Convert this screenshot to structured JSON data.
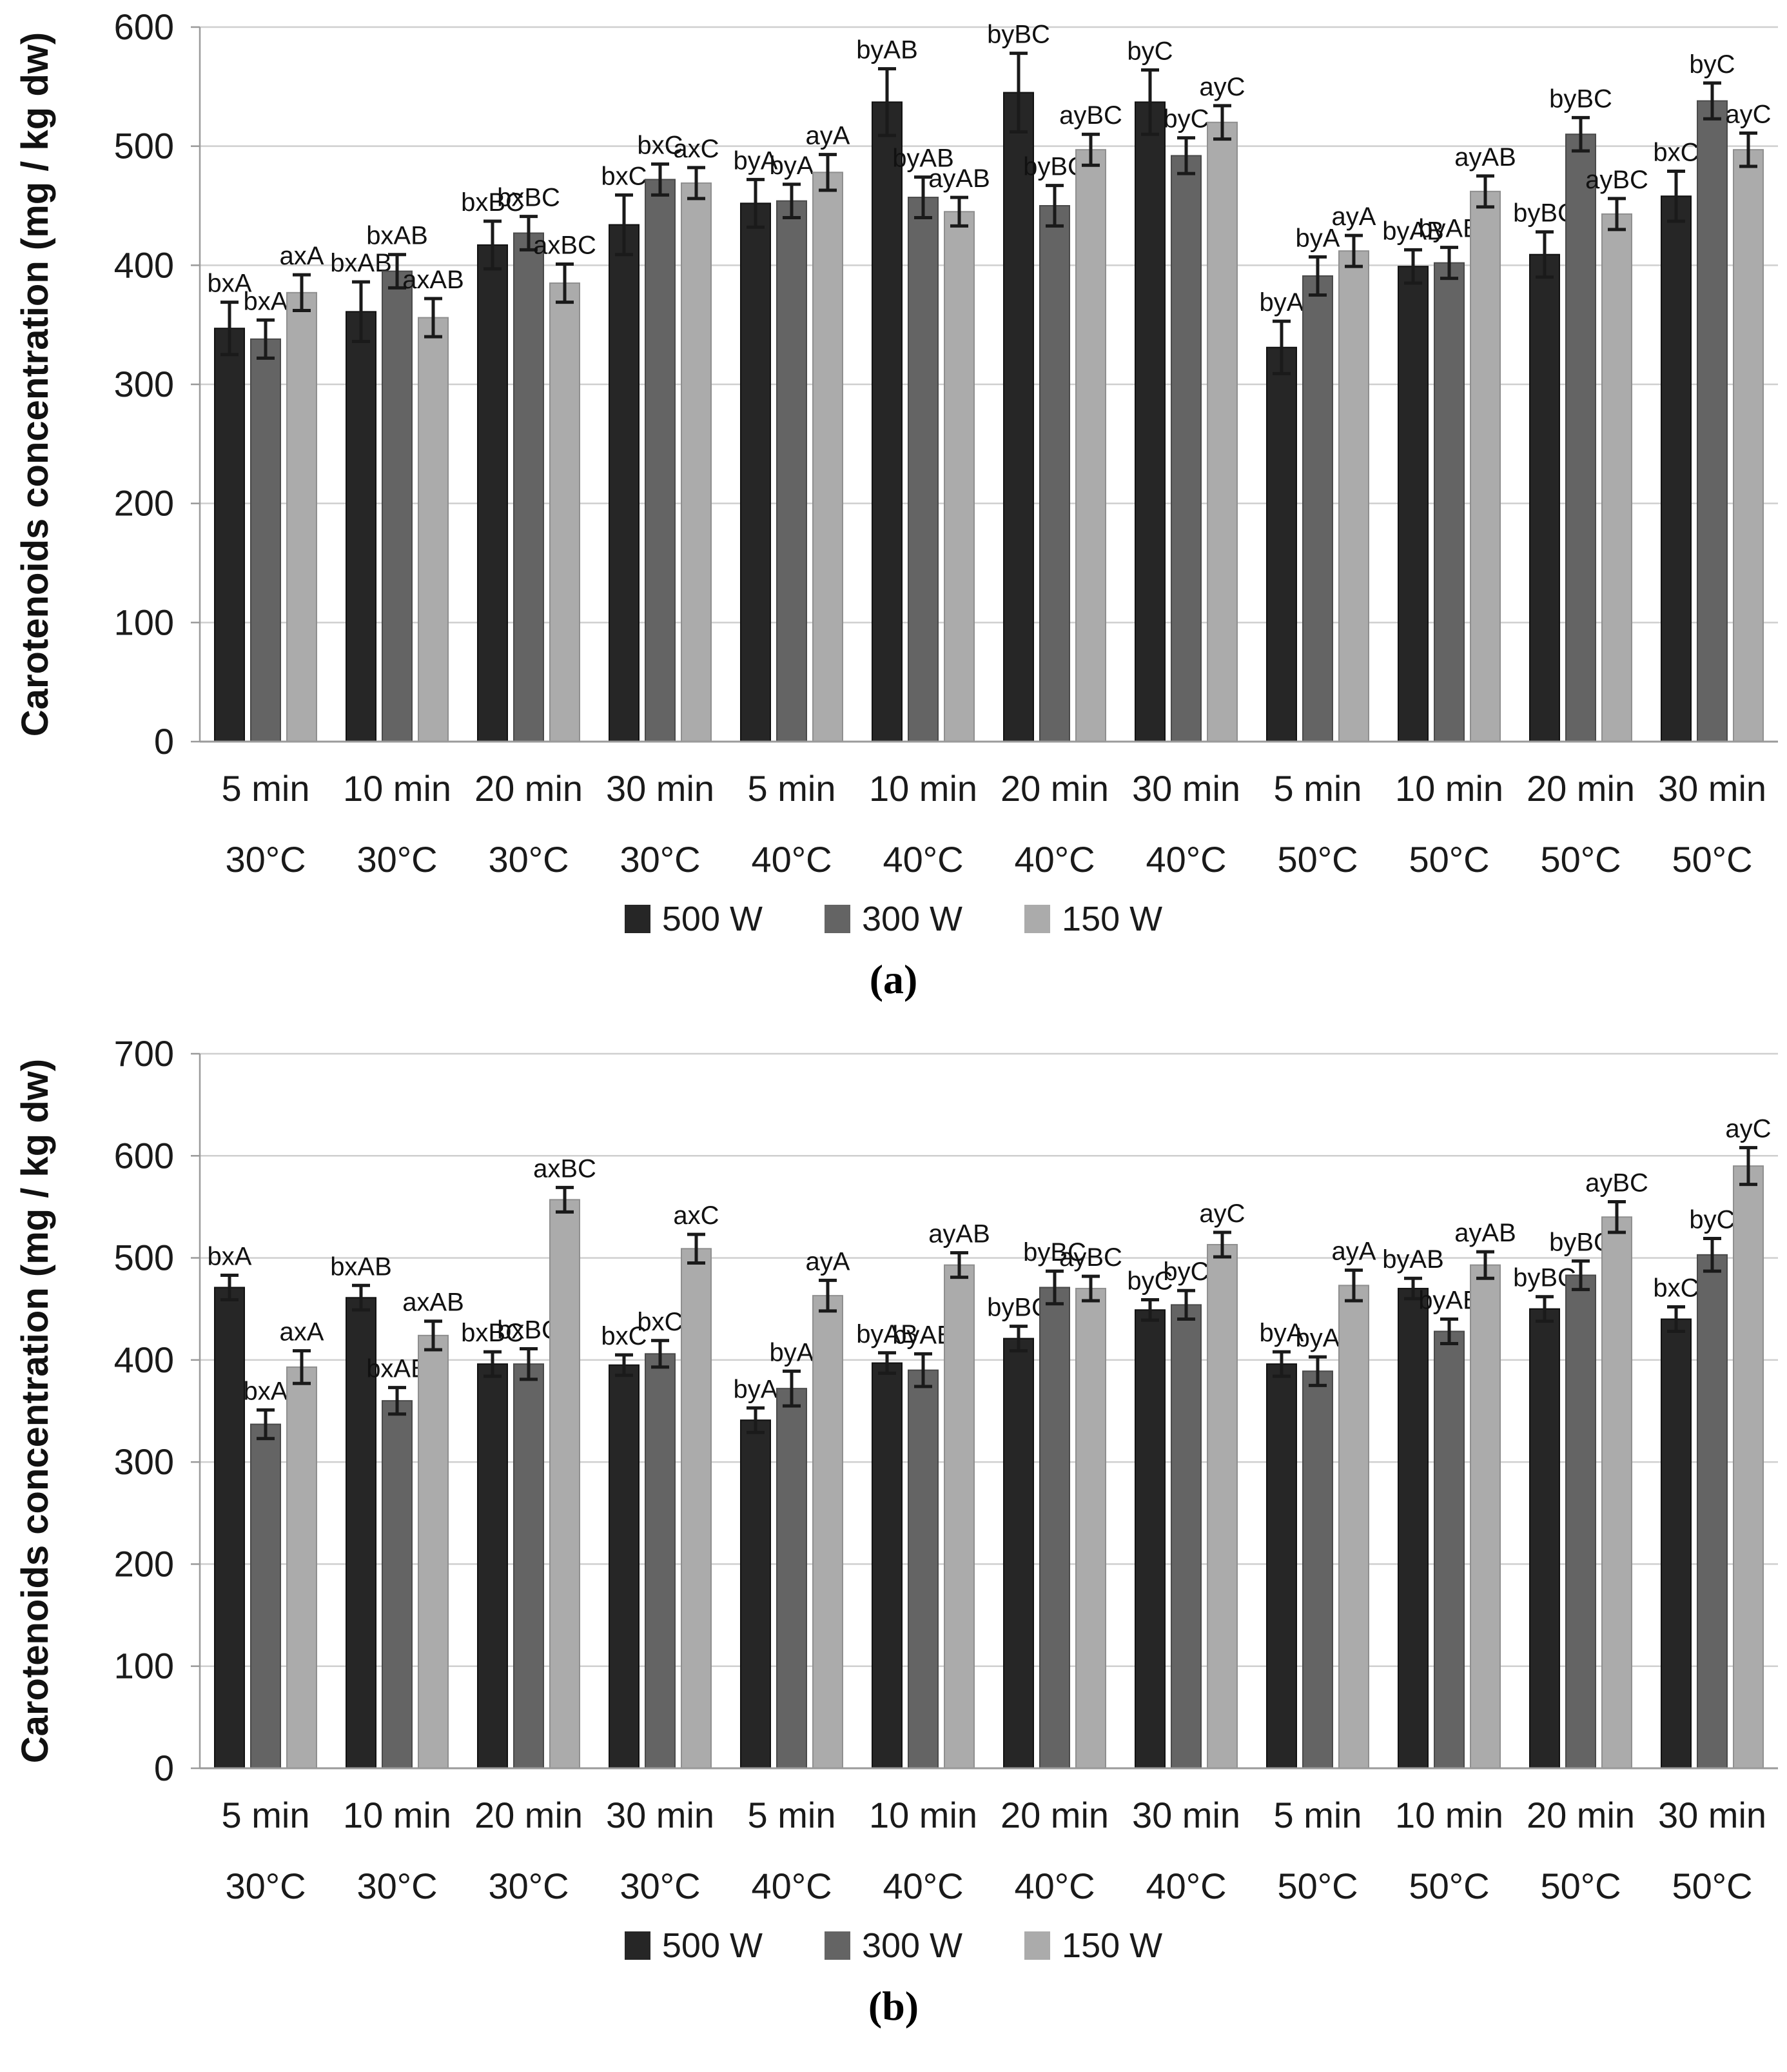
{
  "figure": {
    "description": "Two stacked grouped bar charts of carotenoids concentration with error bars and significance letters"
  },
  "chart_data": [
    {
      "type": "bar",
      "caption": "(a)",
      "ylabel": "Carotenoids concentration  (mg / kg dw)",
      "ylim": [
        0,
        600
      ],
      "ytick_step": 100,
      "grid": true,
      "legend_position": "bottom",
      "categories": [
        {
          "time": "5 min",
          "temp": "30°C"
        },
        {
          "time": "10 min",
          "temp": "30°C"
        },
        {
          "time": "20 min",
          "temp": "30°C"
        },
        {
          "time": "30 min",
          "temp": "30°C"
        },
        {
          "time": "5 min",
          "temp": "40°C"
        },
        {
          "time": "10 min",
          "temp": "40°C"
        },
        {
          "time": "20 min",
          "temp": "40°C"
        },
        {
          "time": "30 min",
          "temp": "40°C"
        },
        {
          "time": "5 min",
          "temp": "50°C"
        },
        {
          "time": "10 min",
          "temp": "50°C"
        },
        {
          "time": "20 min",
          "temp": "50°C"
        },
        {
          "time": "30 min",
          "temp": "50°C"
        }
      ],
      "series": [
        {
          "name": "500 W",
          "color": "#262626",
          "border": "#111111",
          "values": [
            347,
            361,
            417,
            434,
            452,
            537,
            545,
            537,
            331,
            399,
            409,
            458
          ],
          "errors": [
            22,
            25,
            20,
            25,
            20,
            28,
            33,
            27,
            22,
            14,
            19,
            21
          ],
          "labels": [
            "bxA",
            "bxAB",
            "bxBC",
            "bxC",
            "byA",
            "byAB",
            "byBC",
            "byC",
            "byA",
            "byAB",
            "byBC",
            "bxC"
          ]
        },
        {
          "name": "300 W",
          "color": "#646464",
          "border": "#4a4a4a",
          "values": [
            338,
            395,
            427,
            472,
            454,
            457,
            450,
            492,
            391,
            402,
            510,
            538
          ],
          "errors": [
            16,
            14,
            14,
            13,
            14,
            17,
            17,
            15,
            16,
            13,
            14,
            15
          ],
          "labels": [
            "bxA",
            "bxAB",
            "bxBC",
            "bxC",
            "byA",
            "byAB",
            "byBC",
            "byC",
            "byA",
            "byAB",
            "byBC",
            "byC"
          ]
        },
        {
          "name": "150 W",
          "color": "#ababab",
          "border": "#8f8f8f",
          "values": [
            377,
            356,
            385,
            469,
            478,
            445,
            497,
            520,
            412,
            462,
            443,
            497
          ],
          "errors": [
            15,
            16,
            16,
            13,
            15,
            12,
            13,
            14,
            13,
            13,
            13,
            14
          ],
          "labels": [
            "axA",
            "axAB",
            "axBC",
            "axC",
            "ayA",
            "ayAB",
            "ayBC",
            "ayC",
            "ayA",
            "ayAB",
            "ayBC",
            "ayC"
          ]
        }
      ]
    },
    {
      "type": "bar",
      "caption": "(b)",
      "ylabel": "Carotenoids concentration  (mg / kg dw)",
      "ylim": [
        0,
        700
      ],
      "ytick_step": 100,
      "grid": true,
      "legend_position": "bottom",
      "categories": [
        {
          "time": "5 min",
          "temp": "30°C"
        },
        {
          "time": "10 min",
          "temp": "30°C"
        },
        {
          "time": "20 min",
          "temp": "30°C"
        },
        {
          "time": "30 min",
          "temp": "30°C"
        },
        {
          "time": "5 min",
          "temp": "40°C"
        },
        {
          "time": "10 min",
          "temp": "40°C"
        },
        {
          "time": "20 min",
          "temp": "40°C"
        },
        {
          "time": "30 min",
          "temp": "40°C"
        },
        {
          "time": "5 min",
          "temp": "50°C"
        },
        {
          "time": "10 min",
          "temp": "50°C"
        },
        {
          "time": "20 min",
          "temp": "50°C"
        },
        {
          "time": "30 min",
          "temp": "50°C"
        }
      ],
      "series": [
        {
          "name": "500 W",
          "color": "#262626",
          "border": "#111111",
          "values": [
            471,
            461,
            396,
            395,
            341,
            397,
            421,
            449,
            396,
            470,
            450,
            440
          ],
          "errors": [
            12,
            12,
            12,
            10,
            12,
            10,
            12,
            10,
            12,
            10,
            12,
            12
          ],
          "labels": [
            "bxA",
            "bxAB",
            "bxBC",
            "bxC",
            "byA",
            "byAB",
            "byBC",
            "byC",
            "byA",
            "byAB",
            "byBC",
            "bxC"
          ]
        },
        {
          "name": "300 W",
          "color": "#646464",
          "border": "#4a4a4a",
          "values": [
            337,
            360,
            396,
            406,
            372,
            390,
            471,
            454,
            389,
            428,
            483,
            503
          ],
          "errors": [
            14,
            13,
            15,
            13,
            17,
            16,
            16,
            14,
            14,
            12,
            14,
            16
          ],
          "labels": [
            "bxA",
            "bxAB",
            "bxBC",
            "bxC",
            "byA",
            "byAB",
            "byBC",
            "byC",
            "byA",
            "byAB",
            "byBC",
            "byC"
          ]
        },
        {
          "name": "150 W",
          "color": "#ababab",
          "border": "#8f8f8f",
          "values": [
            393,
            424,
            557,
            509,
            463,
            493,
            470,
            513,
            473,
            493,
            540,
            590
          ],
          "errors": [
            16,
            14,
            12,
            14,
            15,
            12,
            12,
            12,
            15,
            13,
            15,
            18
          ],
          "labels": [
            "axA",
            "axAB",
            "axBC",
            "axC",
            "ayA",
            "ayAB",
            "ayBC",
            "ayC",
            "ayA",
            "ayAB",
            "ayBC",
            "ayC"
          ]
        }
      ]
    }
  ]
}
